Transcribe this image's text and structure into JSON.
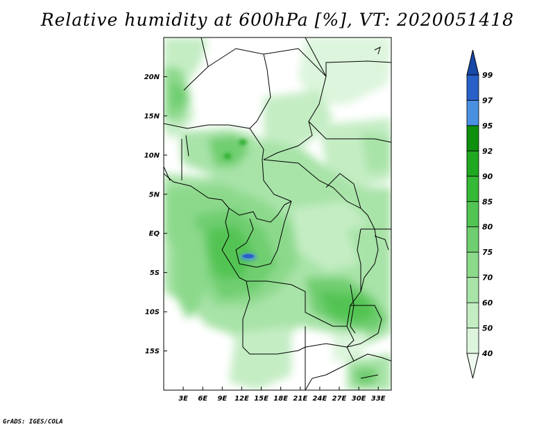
{
  "title": "Relative humidity at 600hPa [%], VT: 2020051418",
  "credit": "GrADS: IGES/COLA",
  "map": {
    "lat_labels": [
      "20N",
      "15N",
      "10N",
      "5N",
      "EQ",
      "5S",
      "10S",
      "15S"
    ],
    "lat_values": [
      20,
      15,
      10,
      5,
      0,
      -5,
      -10,
      -15
    ],
    "lon_labels": [
      "3E",
      "6E",
      "9E",
      "12E",
      "15E",
      "18E",
      "21E",
      "24E",
      "27E",
      "30E",
      "33E"
    ],
    "lon_values": [
      3,
      6,
      9,
      12,
      15,
      18,
      21,
      24,
      27,
      30,
      33
    ],
    "lon_range": [
      0,
      35
    ],
    "lat_range": [
      -20,
      25
    ]
  },
  "colorbar": {
    "labels": [
      "40",
      "50",
      "60",
      "70",
      "75",
      "80",
      "85",
      "90",
      "92",
      "95",
      "97",
      "99"
    ],
    "colors": [
      "#f0fbf0",
      "#dcf5dc",
      "#c4edc4",
      "#a8e3a8",
      "#8cd98c",
      "#6fce6f",
      "#52c452",
      "#36b936",
      "#20a820",
      "#0e8f0e",
      "#4a90e0",
      "#2860c8",
      "#1848a8"
    ]
  }
}
